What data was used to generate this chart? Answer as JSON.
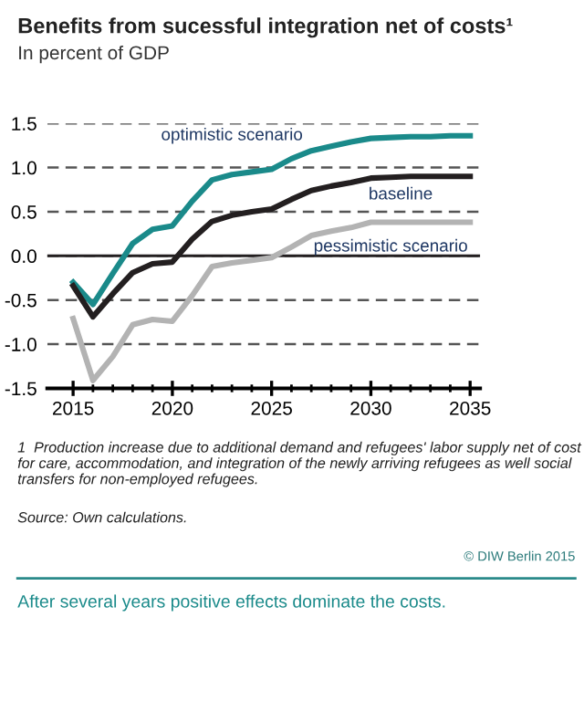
{
  "chart_data": {
    "type": "line",
    "title": "Benefits from sucessful integration net of costs¹",
    "subtitle": "In percent of GDP",
    "x": [
      2015,
      2016,
      2017,
      2018,
      2019,
      2020,
      2021,
      2022,
      2023,
      2024,
      2025,
      2026,
      2027,
      2028,
      2029,
      2030,
      2031,
      2032,
      2033,
      2034,
      2035
    ],
    "series": [
      {
        "name": "optimistic scenario",
        "color": "#1a8a8a",
        "values": [
          -0.3,
          -0.55,
          -0.2,
          0.14,
          0.3,
          0.34,
          0.62,
          0.86,
          0.92,
          0.95,
          0.98,
          1.1,
          1.19,
          1.24,
          1.29,
          1.33,
          1.34,
          1.35,
          1.35,
          1.36,
          1.36
        ]
      },
      {
        "name": "baseline",
        "color": "#231f20",
        "values": [
          -0.34,
          -0.69,
          -0.43,
          -0.19,
          -0.09,
          -0.07,
          0.19,
          0.39,
          0.46,
          0.5,
          0.53,
          0.64,
          0.74,
          0.79,
          0.83,
          0.88,
          0.89,
          0.9,
          0.9,
          0.9,
          0.9
        ]
      },
      {
        "name": "pessimistic scenario",
        "color": "#b3b3b3",
        "values": [
          -0.71,
          -1.41,
          -1.14,
          -0.78,
          -0.72,
          -0.74,
          -0.45,
          -0.12,
          -0.08,
          -0.05,
          -0.02,
          0.1,
          0.23,
          0.28,
          0.32,
          0.38,
          0.38,
          0.38,
          0.38,
          0.38,
          0.38
        ]
      }
    ],
    "xlim": [
      2013.7,
      2035.5
    ],
    "xticks": [
      2015,
      2020,
      2025,
      2030,
      2035
    ],
    "ylim": [
      -1.5,
      1.5
    ],
    "yticks": [
      {
        "value": -1.5,
        "label": "-1.5"
      },
      {
        "value": -1.0,
        "label": "-1.0"
      },
      {
        "value": -0.5,
        "label": "-0.5"
      },
      {
        "value": 0,
        "label": "0.0"
      },
      {
        "value": 0.5,
        "label": "0.5"
      },
      {
        "value": 1.0,
        "label": "1.0"
      },
      {
        "value": 1.5,
        "label": "1.5"
      }
    ],
    "grid": "y",
    "legend": false,
    "marker": "none",
    "line_style": "solid",
    "ref_lines": [
      {
        "axis": "y",
        "value": 0,
        "color": "#231f20",
        "line_style": "solid"
      }
    ],
    "annotations": [
      "1  Production increase due to additional demand and refugees' labor supply net of cost for care, accommodation, and integration of the newly arriving refugees as well social transfers for non-employed refugees.",
      "Source: Own calculations.",
      "© DIW Berlin 2015",
      "After several years positive effects dominate the costs."
    ]
  }
}
